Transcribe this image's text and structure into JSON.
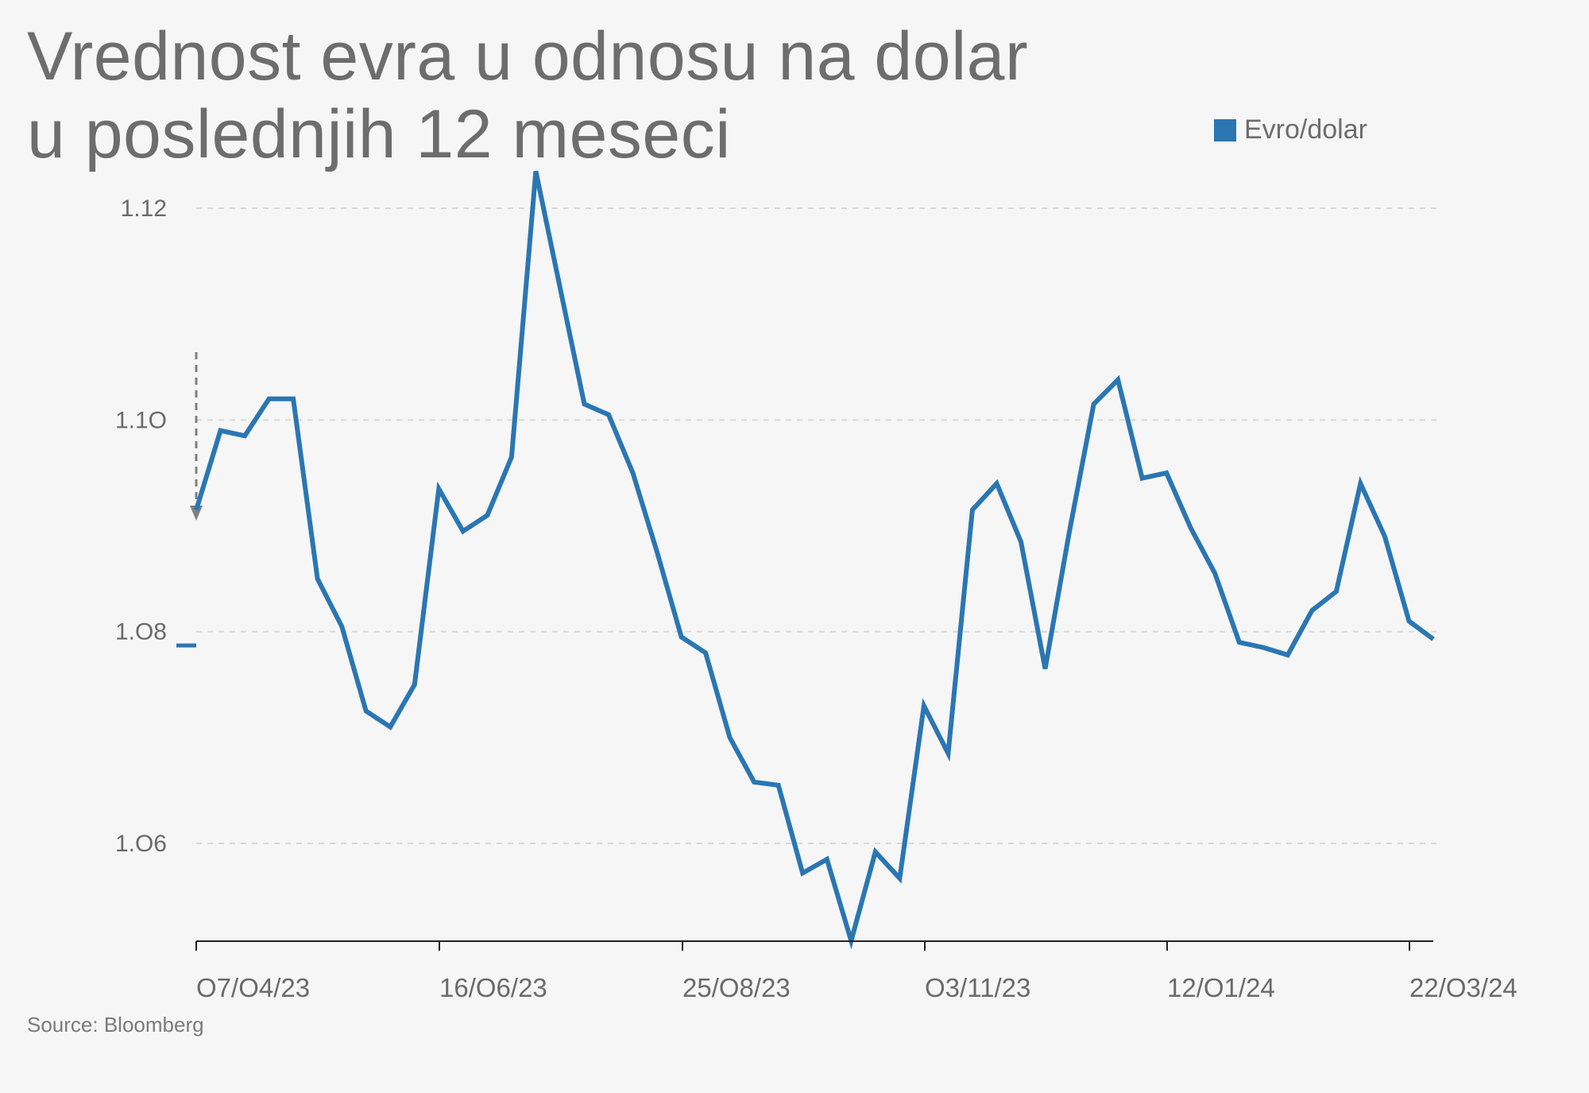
{
  "title_line1": "Vrednost evra u odnosu na dolar",
  "title_line2": "u poslednjih 12 meseci",
  "legend_label": "Evro/dolar",
  "source": "Source: Bloomberg",
  "colors": {
    "series": "#2a76b3",
    "grid": "#d9d9d9",
    "axis": "#222222",
    "text": "#6d6d6d"
  },
  "chart_data": {
    "type": "line",
    "title": "Vrednost evra u odnosu na dolar u poslednjih 12 meseci",
    "xlabel": "",
    "ylabel": "",
    "ylim": [
      1.051,
      1.123
    ],
    "yticks": [
      1.06,
      1.08,
      1.1,
      1.12
    ],
    "ytick_labels": [
      "1.O6",
      "1.O8",
      "1.1O",
      "1.12"
    ],
    "xtick_labels": [
      "O7/O4/23",
      "16/O6/23",
      "25/O8/23",
      "O3/11/23",
      "12/O1/24",
      "22/O3/24"
    ],
    "grid": true,
    "legend_position": "top-right",
    "series": [
      {
        "name": "Evro/dolar",
        "values": [
          1.0915,
          1.099,
          1.0985,
          1.102,
          1.102,
          1.085,
          1.0805,
          1.0725,
          1.071,
          1.075,
          1.0935,
          1.0895,
          1.091,
          1.0965,
          1.1235,
          1.1125,
          1.1015,
          1.1005,
          1.095,
          1.0875,
          1.0795,
          1.078,
          1.07,
          1.0658,
          1.0655,
          1.0572,
          1.0585,
          1.0508,
          1.0592,
          1.0567,
          1.073,
          1.0685,
          1.0915,
          1.094,
          1.0885,
          1.0765,
          1.0895,
          1.1015,
          1.1038,
          1.0945,
          1.095,
          1.0898,
          1.0855,
          1.079,
          1.0785,
          1.0778,
          1.082,
          1.0838,
          1.094,
          1.089,
          1.081,
          1.0793
        ]
      }
    ]
  }
}
